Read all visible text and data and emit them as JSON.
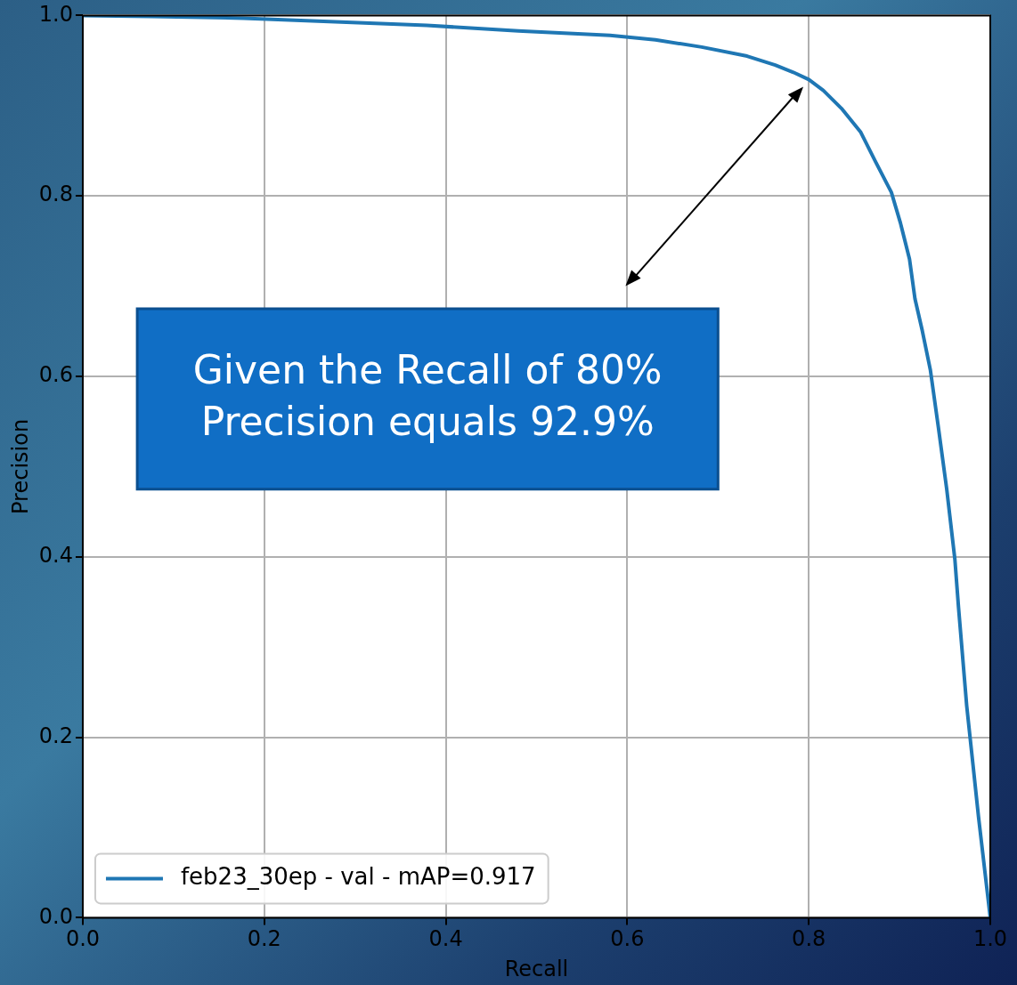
{
  "chart_data": {
    "type": "line",
    "xlabel": "Recall",
    "ylabel": "Precision",
    "x": [
      0,
      0.076,
      0.177,
      0.278,
      0.379,
      0.48,
      0.581,
      0.631,
      0.682,
      0.732,
      0.763,
      0.783,
      0.8,
      0.816,
      0.836,
      0.857,
      0.874,
      0.891,
      0.901,
      0.911,
      0.917,
      0.925,
      0.934,
      0.943,
      0.952,
      0.961,
      0.965,
      0.974,
      0.981,
      0.987,
      1.0
    ],
    "series": [
      {
        "name": "feb23_30ep - val - mAP=0.917",
        "color": "#1f77b4",
        "values": [
          1.0,
          0.999,
          0.997,
          0.993,
          0.989,
          0.983,
          0.978,
          0.973,
          0.965,
          0.955,
          0.945,
          0.937,
          0.929,
          0.917,
          0.897,
          0.871,
          0.837,
          0.804,
          0.77,
          0.73,
          0.686,
          0.651,
          0.607,
          0.542,
          0.475,
          0.397,
          0.344,
          0.235,
          0.169,
          0.112,
          0.0
        ]
      }
    ],
    "xlim": [
      0,
      1
    ],
    "ylim": [
      0,
      1
    ],
    "xticks": [
      {
        "value": 0,
        "label": "0.0"
      },
      0.2,
      0.4,
      0.6,
      0.8,
      {
        "value": 1,
        "label": "1.0"
      }
    ],
    "yticks": [
      {
        "value": 0,
        "label": "0.0"
      },
      0.2,
      0.4,
      0.6,
      0.8,
      {
        "value": 1,
        "label": "1.0"
      }
    ],
    "grid": true,
    "legend": "bottom left",
    "marker": "none",
    "line_style": "solid",
    "annotations": [
      "Given the Recall of 80%\nPrecision equals 92.9%"
    ]
  }
}
